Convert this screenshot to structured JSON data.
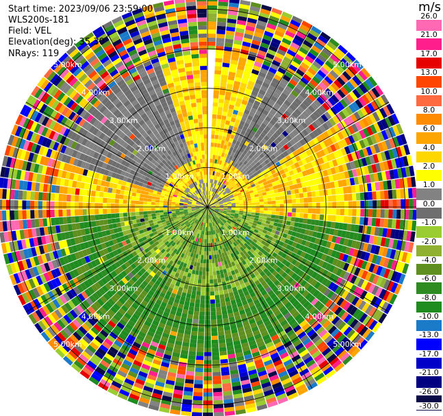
{
  "info": {
    "start_time": "Start time: 2023/09/06 23:59:00",
    "instrument": "WLS200s-181",
    "field": "Field: VEL",
    "elevation": "Elevation(deg): 35.30",
    "nrays": "NRays: 119"
  },
  "chart_data": {
    "type": "heatmap",
    "title": "",
    "projection": "polar-ppi",
    "range_rings_km": [
      1.0,
      2.0,
      3.0,
      4.0,
      5.0
    ],
    "range_labels": [
      "1.00km",
      "2.00km",
      "3.00km",
      "4.00km",
      "5.00km"
    ],
    "max_range_km": 5.3,
    "grid": true,
    "colorbar": {
      "unit": "m/s",
      "placement": "right",
      "ticks": [
        "-30.0",
        "-26.0",
        "-21.0",
        "-17.0",
        "-13.0",
        "-10.0",
        "-8.0",
        "-6.0",
        "-4.0",
        "-2.0",
        "-1.0",
        "0.0",
        "1.0",
        "2.0",
        "4.0",
        "6.0",
        "8.0",
        "10.0",
        "13.0",
        "17.0",
        "21.0",
        "26.0"
      ],
      "colors": [
        "#0a0a46",
        "#000080",
        "#0000c8",
        "#0000ff",
        "#1c7bc8",
        "#1e8c1e",
        "#2e8b22",
        "#5f8f1f",
        "#8fb030",
        "#9acd32",
        "#6e6e6e",
        "#828282",
        "#ffff00",
        "#ffd700",
        "#ffa500",
        "#ff8c00",
        "#ff6a40",
        "#ff4500",
        "#e60000",
        "#ff1e8c",
        "#ff69b4"
      ]
    },
    "sectors": [
      {
        "azimuth_range_deg": [
          0,
          90
        ],
        "near_range_velocity": "positive (1 to 6 m/s, yellow/orange)"
      },
      {
        "azimuth_range_deg": [
          90,
          270
        ],
        "near_range_velocity": "negative (-1 to -8 m/s, green)"
      },
      {
        "azimuth_range_deg": [
          270,
          360
        ],
        "near_range_velocity": "positive (1 to 6 m/s, yellow/orange)"
      },
      {
        "far_range_km": [
          3.6,
          5.3
        ],
        "velocity": "noisy, full range"
      }
    ]
  }
}
